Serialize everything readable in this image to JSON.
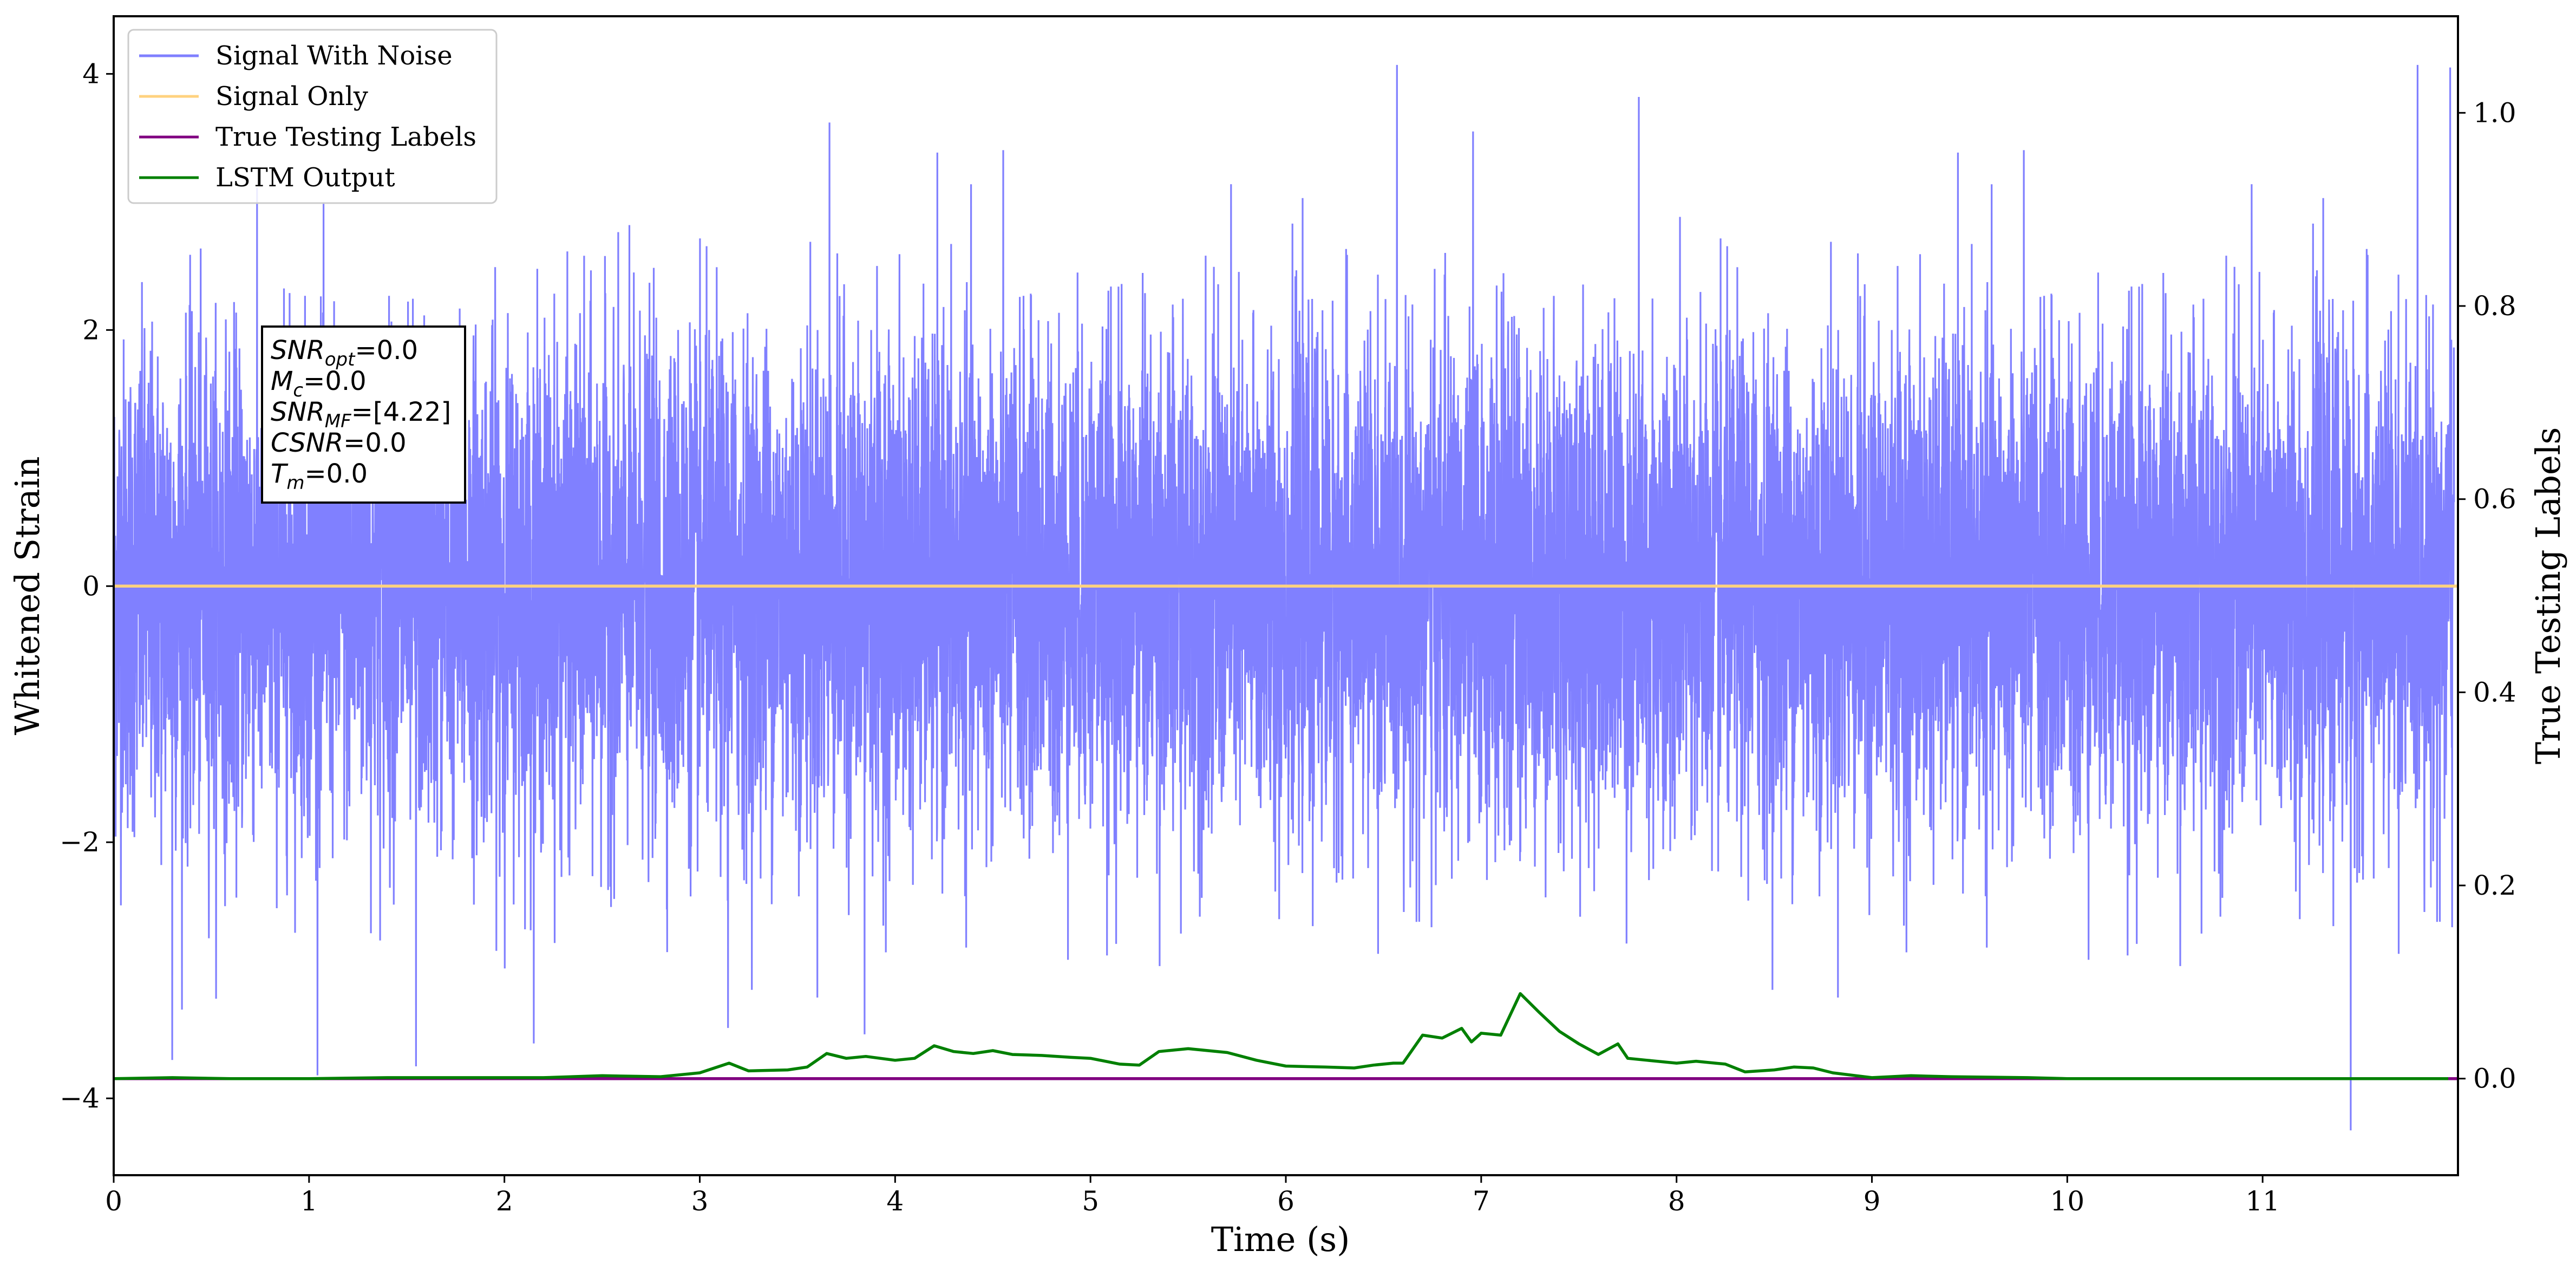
{
  "chart_data": {
    "type": "line",
    "xlabel": "Time (s)",
    "ylabel": "Whitened Strain",
    "ylabel_right": "True Testing Labels",
    "xlim": [
      0,
      12
    ],
    "ylim": [
      -4.6,
      4.45
    ],
    "ylim_right": [
      -0.1,
      1.1
    ],
    "grid": false,
    "legend_position": "top-left",
    "x_ticks": [
      0,
      1,
      2,
      3,
      4,
      5,
      6,
      7,
      8,
      9,
      10,
      11
    ],
    "y_ticks": [
      -4,
      -2,
      0,
      2,
      4
    ],
    "y_ticks_right": [
      0.0,
      0.2,
      0.4,
      0.6,
      0.8,
      1.0
    ],
    "x_tick_labels": [
      "0",
      "1",
      "2",
      "3",
      "4",
      "5",
      "6",
      "7",
      "8",
      "9",
      "10",
      "11"
    ],
    "y_tick_labels": [
      "−4",
      "−2",
      "0",
      "2",
      "4"
    ],
    "y_tick_labels_right": [
      "0.0",
      "0.2",
      "0.4",
      "0.6",
      "0.8",
      "1.0"
    ],
    "series": [
      {
        "name": "Signal With Noise",
        "color": "#8080ff",
        "axis": "left",
        "style": "dense noise, approx. ±1.5 band with spikes up to ±4",
        "peaks": [
          {
            "x": 0.3,
            "y": -3.7
          },
          {
            "x": 1.55,
            "y": -3.75
          },
          {
            "x": 3.15,
            "y": -3.45
          },
          {
            "x": 3.67,
            "y": 3.62
          },
          {
            "x": 3.85,
            "y": -3.5
          },
          {
            "x": 6.97,
            "y": 3.55
          },
          {
            "x": 7.82,
            "y": 3.82
          },
          {
            "x": 11.47,
            "y": -4.25
          },
          {
            "x": 11.98,
            "y": 4.05
          }
        ]
      },
      {
        "name": "Signal Only",
        "color": "#ffd27f",
        "axis": "left",
        "points": [
          [
            0,
            0
          ],
          [
            12,
            0
          ]
        ]
      },
      {
        "name": "True Testing Labels",
        "color": "#800080",
        "axis": "right",
        "points": [
          [
            0,
            0
          ],
          [
            12,
            0
          ]
        ]
      },
      {
        "name": "LSTM Output",
        "color": "#008000",
        "axis": "right",
        "points": [
          [
            0.0,
            0.0
          ],
          [
            0.3,
            0.001
          ],
          [
            0.6,
            0.0
          ],
          [
            1.0,
            0.0
          ],
          [
            1.4,
            0.001
          ],
          [
            1.8,
            0.001
          ],
          [
            2.2,
            0.001
          ],
          [
            2.5,
            0.003
          ],
          [
            2.8,
            0.002
          ],
          [
            3.0,
            0.006
          ],
          [
            3.15,
            0.016
          ],
          [
            3.25,
            0.008
          ],
          [
            3.45,
            0.009
          ],
          [
            3.55,
            0.012
          ],
          [
            3.65,
            0.026
          ],
          [
            3.75,
            0.021
          ],
          [
            3.85,
            0.023
          ],
          [
            4.0,
            0.019
          ],
          [
            4.1,
            0.021
          ],
          [
            4.2,
            0.034
          ],
          [
            4.3,
            0.028
          ],
          [
            4.4,
            0.026
          ],
          [
            4.5,
            0.029
          ],
          [
            4.6,
            0.025
          ],
          [
            4.75,
            0.024
          ],
          [
            4.9,
            0.022
          ],
          [
            5.0,
            0.021
          ],
          [
            5.15,
            0.015
          ],
          [
            5.25,
            0.014
          ],
          [
            5.35,
            0.028
          ],
          [
            5.5,
            0.031
          ],
          [
            5.7,
            0.027
          ],
          [
            5.85,
            0.019
          ],
          [
            6.0,
            0.013
          ],
          [
            6.2,
            0.012
          ],
          [
            6.35,
            0.011
          ],
          [
            6.45,
            0.014
          ],
          [
            6.55,
            0.016
          ],
          [
            6.6,
            0.016
          ],
          [
            6.7,
            0.045
          ],
          [
            6.8,
            0.042
          ],
          [
            6.9,
            0.052
          ],
          [
            6.95,
            0.038
          ],
          [
            7.0,
            0.047
          ],
          [
            7.1,
            0.045
          ],
          [
            7.2,
            0.088
          ],
          [
            7.3,
            0.068
          ],
          [
            7.4,
            0.049
          ],
          [
            7.5,
            0.036
          ],
          [
            7.6,
            0.025
          ],
          [
            7.7,
            0.036
          ],
          [
            7.75,
            0.021
          ],
          [
            7.85,
            0.019
          ],
          [
            8.0,
            0.016
          ],
          [
            8.1,
            0.018
          ],
          [
            8.25,
            0.015
          ],
          [
            8.35,
            0.007
          ],
          [
            8.5,
            0.009
          ],
          [
            8.6,
            0.012
          ],
          [
            8.7,
            0.011
          ],
          [
            8.8,
            0.006
          ],
          [
            9.0,
            0.001
          ],
          [
            9.2,
            0.003
          ],
          [
            9.4,
            0.002
          ],
          [
            9.8,
            0.001
          ],
          [
            10.0,
            0.0
          ],
          [
            10.4,
            0.0
          ],
          [
            11.0,
            0.0
          ],
          [
            11.5,
            0.0
          ],
          [
            11.95,
            0.0
          ]
        ]
      }
    ],
    "annotation": {
      "lines": [
        {
          "name": "SNR",
          "sub": "opt",
          "value": "=0.0"
        },
        {
          "name": "M",
          "sub": "c",
          "value": "=0.0"
        },
        {
          "name": "SNR",
          "sub": "MF",
          "value": "=[4.22]"
        },
        {
          "name": "CSNR",
          "sub": "",
          "value": "=0.0"
        },
        {
          "name": "T",
          "sub": "m",
          "value": "=0.0"
        }
      ]
    }
  }
}
